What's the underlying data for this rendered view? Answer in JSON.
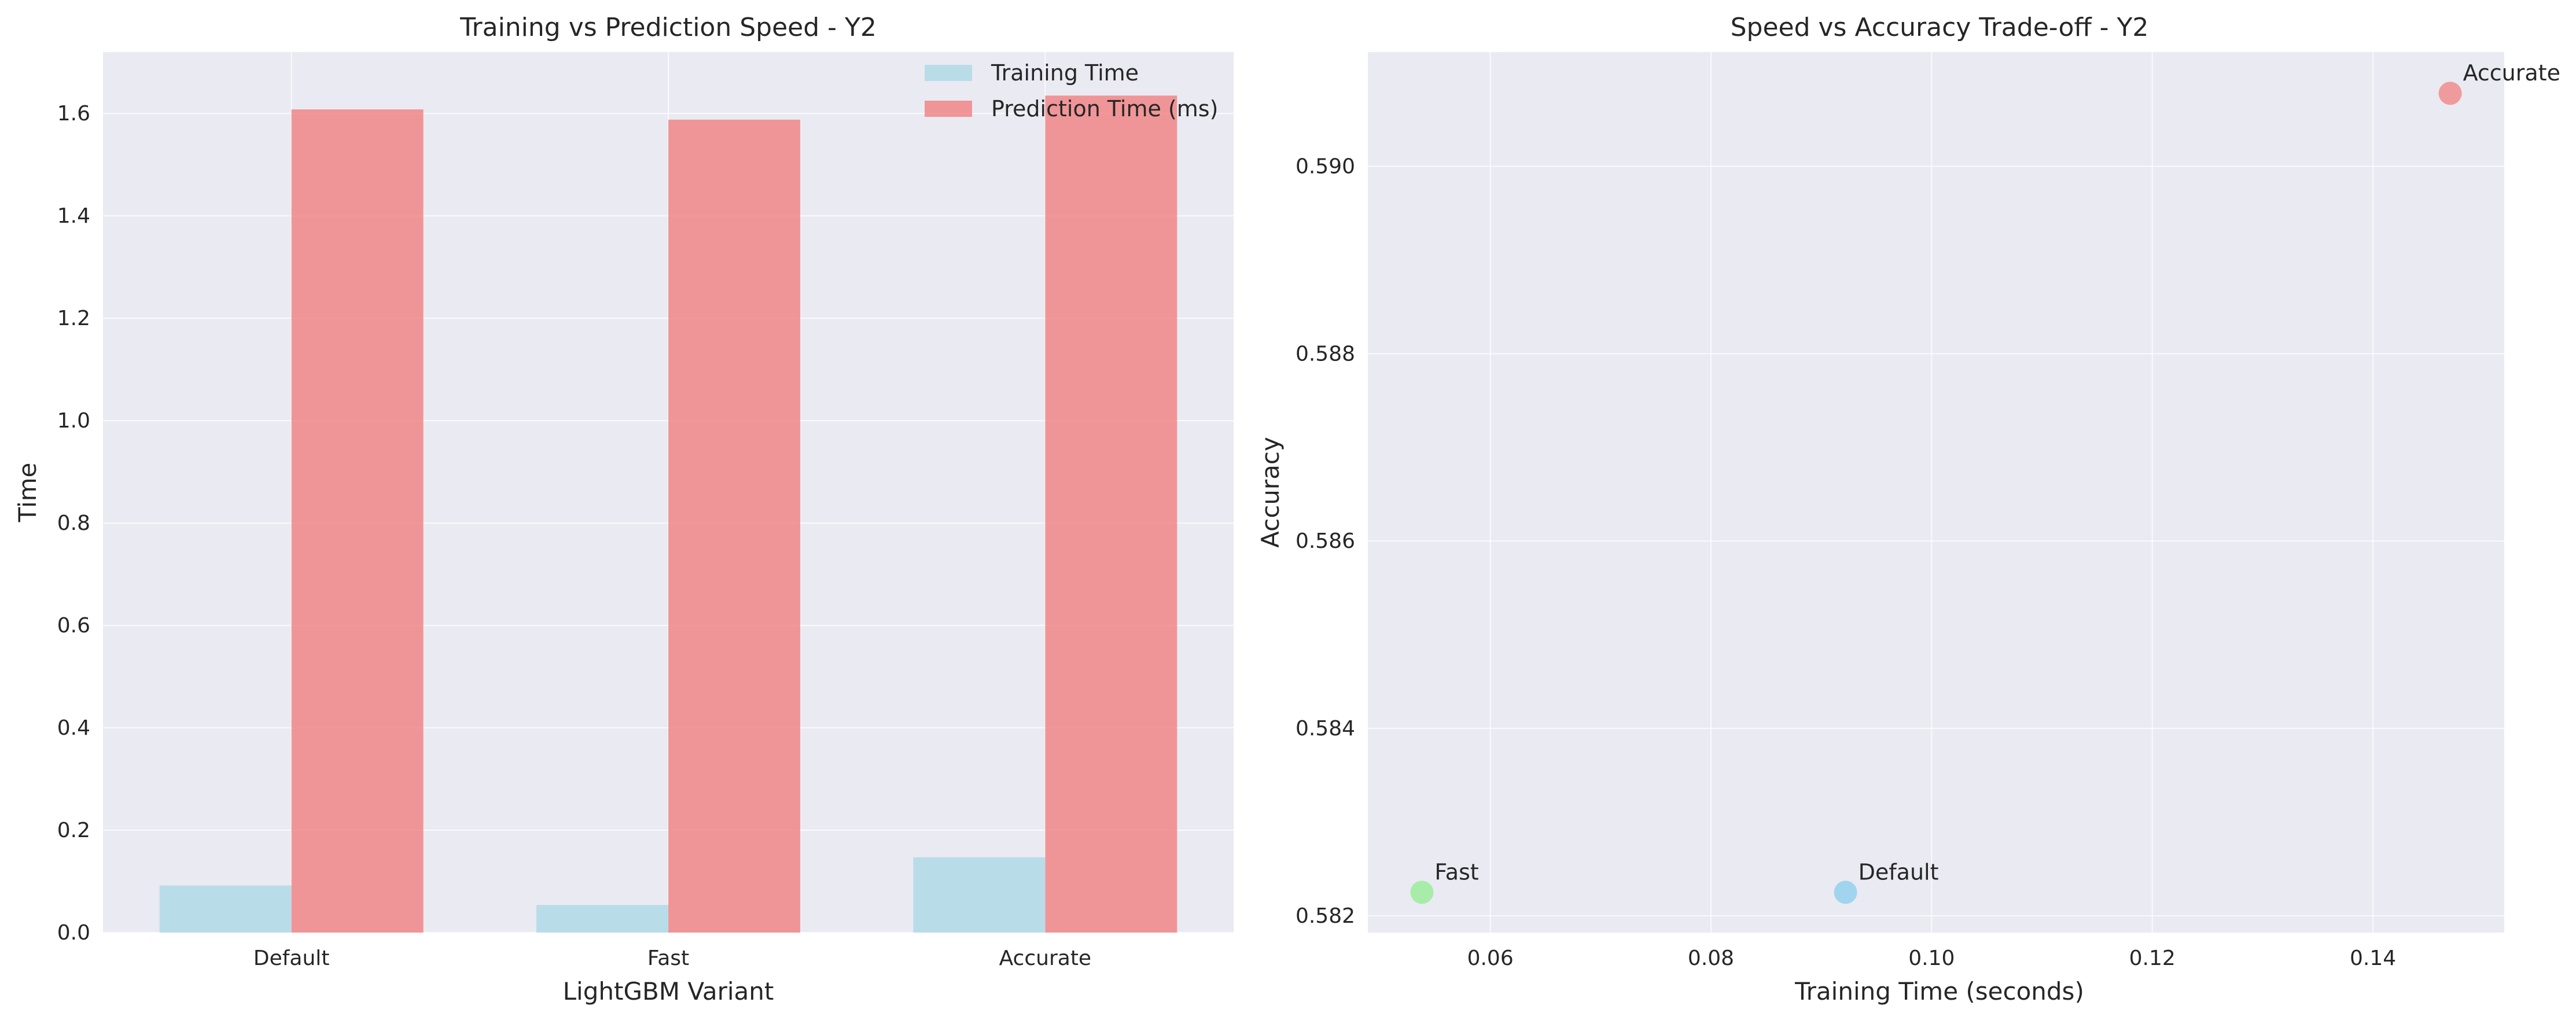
{
  "colors": {
    "axes_bg": "#eaeaf2",
    "training": "#add8e6",
    "prediction": "#f08080",
    "point_default": "#87ceeb",
    "point_fast": "#90ee90",
    "point_accurate": "#f08080"
  },
  "chart_data": [
    {
      "type": "bar",
      "title": "Training vs Prediction Speed - Y2",
      "xlabel": "LightGBM Variant",
      "ylabel": "Time",
      "categories": [
        "Default",
        "Fast",
        "Accurate"
      ],
      "series": [
        {
          "name": "Training Time",
          "values": [
            0.092,
            0.054,
            0.147
          ]
        },
        {
          "name": "Prediction Time (ms)",
          "values": [
            1.608,
            1.588,
            1.635
          ]
        }
      ],
      "ylim": [
        0,
        1.72
      ],
      "yticks": [
        0.0,
        0.2,
        0.4,
        0.6,
        0.8,
        1.0,
        1.2,
        1.4,
        1.6
      ],
      "ytick_labels": [
        "0.0",
        "0.2",
        "0.4",
        "0.6",
        "0.8",
        "1.0",
        "1.2",
        "1.4",
        "1.6"
      ],
      "grid": true,
      "legend": "top-right"
    },
    {
      "type": "scatter",
      "title": "Speed vs Accuracy Trade-off - Y2",
      "xlabel": "Training Time (seconds)",
      "ylabel": "Accuracy",
      "points": [
        {
          "label": "Default",
          "x": 0.0922,
          "y": 0.58225
        },
        {
          "label": "Fast",
          "x": 0.0538,
          "y": 0.58225
        },
        {
          "label": "Accurate",
          "x": 0.147,
          "y": 0.59078
        }
      ],
      "xlim": [
        0.0489,
        0.1519
      ],
      "ylim": [
        0.58182,
        0.59122
      ],
      "xticks": [
        0.06,
        0.08,
        0.1,
        0.12,
        0.14
      ],
      "xtick_labels": [
        "0.06",
        "0.08",
        "0.10",
        "0.12",
        "0.14"
      ],
      "yticks": [
        0.582,
        0.584,
        0.586,
        0.588,
        0.59
      ],
      "ytick_labels": [
        "0.582",
        "0.584",
        "0.586",
        "0.588",
        "0.590"
      ],
      "grid": true
    }
  ]
}
